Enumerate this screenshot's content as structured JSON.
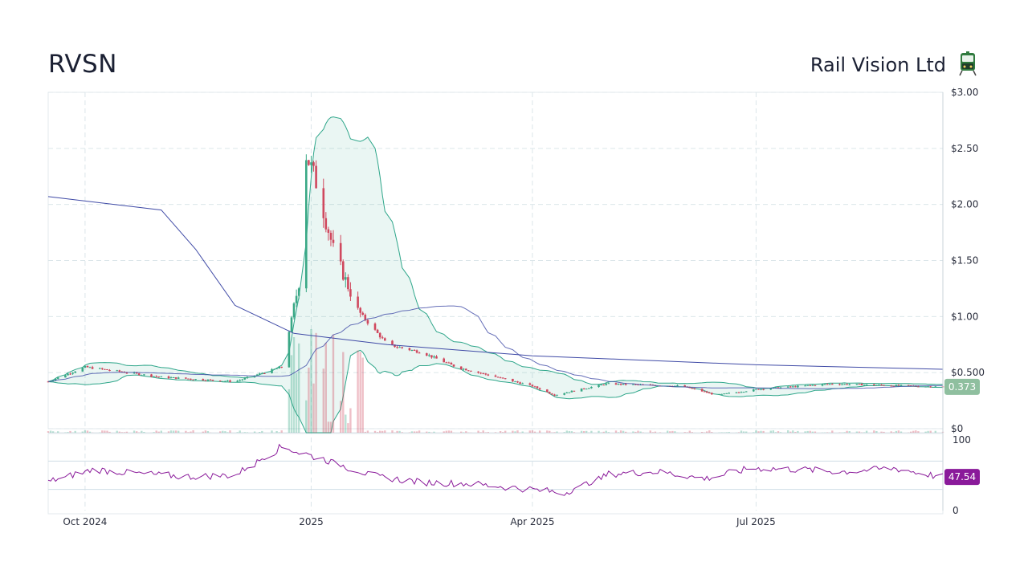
{
  "header": {
    "ticker": "RVSN",
    "company": "Rail Vision Ltd",
    "logo_icon": "train-icon"
  },
  "colors": {
    "up": "#3aa886",
    "down": "#d0485e",
    "band": "#2ea68a",
    "sma_long": "#3f4aa6",
    "rsi": "#8a1a9a",
    "last_price_badge": "#8fbf9f",
    "rsi_badge": "#8a1a9a"
  },
  "chart_data": [
    {
      "type": "candlestick",
      "title": "",
      "y_ticks": [
        "$0",
        "$0.500",
        "$1.00",
        "$1.50",
        "$2.00",
        "$2.50",
        "$3.00"
      ],
      "y_tick_values": [
        0,
        0.5,
        1.0,
        1.5,
        2.0,
        2.5,
        3.0
      ],
      "ylim": [
        0,
        3.0
      ],
      "x_ticks": [
        "Oct 2024",
        "2025",
        "Apr 2025",
        "Jul 2025"
      ],
      "x_tick_dates": [
        "2024-10-01",
        "2025-01-01",
        "2025-04-01",
        "2025-07-01"
      ],
      "xlim": [
        "2024-09-16",
        "2025-09-15"
      ],
      "grid": true,
      "last_price": "0.373",
      "overlays": [
        "bollinger_bands",
        "sma_short",
        "sma_long",
        "volume"
      ],
      "key_points": [
        {
          "date": "2024-09-16",
          "close": 0.42
        },
        {
          "date": "2024-10-01",
          "close": 0.55
        },
        {
          "date": "2024-11-01",
          "close": 0.46
        },
        {
          "date": "2024-12-01",
          "close": 0.42
        },
        {
          "date": "2024-12-20",
          "close": 0.55
        },
        {
          "date": "2024-12-27",
          "close": 1.3
        },
        {
          "date": "2024-12-30",
          "close": 2.45
        },
        {
          "date": "2025-01-03",
          "close": 2.2
        },
        {
          "date": "2025-01-10",
          "close": 1.6
        },
        {
          "date": "2025-01-20",
          "close": 1.05
        },
        {
          "date": "2025-02-01",
          "close": 0.75
        },
        {
          "date": "2025-02-15",
          "close": 0.68
        },
        {
          "date": "2025-03-01",
          "close": 0.55
        },
        {
          "date": "2025-04-01",
          "close": 0.38
        },
        {
          "date": "2025-04-10",
          "close": 0.3
        },
        {
          "date": "2025-05-01",
          "close": 0.4
        },
        {
          "date": "2025-06-01",
          "close": 0.38
        },
        {
          "date": "2025-06-15",
          "close": 0.3
        },
        {
          "date": "2025-07-01",
          "close": 0.35
        },
        {
          "date": "2025-08-01",
          "close": 0.4
        },
        {
          "date": "2025-09-15",
          "close": 0.373
        }
      ],
      "sma_long_points": [
        {
          "date": "2024-09-16",
          "value": 2.07
        },
        {
          "date": "2024-11-01",
          "value": 1.95
        },
        {
          "date": "2024-11-15",
          "value": 1.6
        },
        {
          "date": "2024-12-01",
          "value": 1.1
        },
        {
          "date": "2024-12-25",
          "value": 0.85
        },
        {
          "date": "2025-02-01",
          "value": 0.75
        },
        {
          "date": "2025-04-01",
          "value": 0.65
        },
        {
          "date": "2025-07-01",
          "value": 0.57
        },
        {
          "date": "2025-09-15",
          "value": 0.53
        }
      ]
    },
    {
      "type": "line",
      "title": "",
      "series": [
        {
          "name": "",
          "values": [
            40,
            58,
            52,
            48,
            50,
            90,
            70,
            48,
            40,
            38,
            32,
            25,
            52,
            55,
            45,
            60,
            58,
            55,
            60,
            47.54
          ]
        }
      ],
      "y_ticks": [
        "0",
        "100"
      ],
      "ylim": [
        0,
        100
      ],
      "reference_lines": [
        30,
        70
      ],
      "last_value": "47.54"
    }
  ]
}
